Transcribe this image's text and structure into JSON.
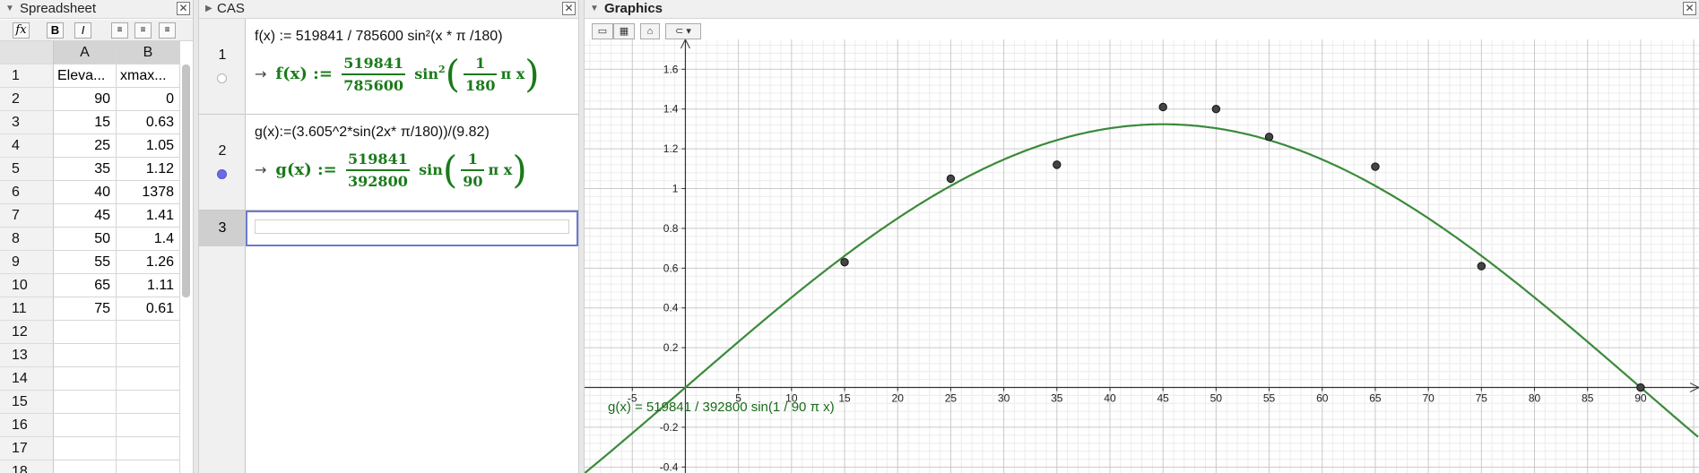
{
  "spreadsheet": {
    "title": "Spreadsheet",
    "toolbar": {
      "fx": "fx",
      "bold": "B",
      "italic": "I"
    },
    "columns": [
      "A",
      "B"
    ],
    "rows": [
      {
        "n": "1",
        "a": "Eleva...",
        "b": "xmax..."
      },
      {
        "n": "2",
        "a": "90",
        "b": "0"
      },
      {
        "n": "3",
        "a": "15",
        "b": "0.63"
      },
      {
        "n": "4",
        "a": "25",
        "b": "1.05"
      },
      {
        "n": "5",
        "a": "35",
        "b": "1.12"
      },
      {
        "n": "6",
        "a": "40",
        "b": "1378"
      },
      {
        "n": "7",
        "a": "45",
        "b": "1.41"
      },
      {
        "n": "8",
        "a": "50",
        "b": "1.4"
      },
      {
        "n": "9",
        "a": "55",
        "b": "1.26"
      },
      {
        "n": "10",
        "a": "65",
        "b": "1.11"
      },
      {
        "n": "11",
        "a": "75",
        "b": "0.61"
      },
      {
        "n": "12",
        "a": "",
        "b": ""
      },
      {
        "n": "13",
        "a": "",
        "b": ""
      },
      {
        "n": "14",
        "a": "",
        "b": ""
      },
      {
        "n": "15",
        "a": "",
        "b": ""
      },
      {
        "n": "16",
        "a": "",
        "b": ""
      },
      {
        "n": "17",
        "a": "",
        "b": ""
      },
      {
        "n": "18",
        "a": "",
        "b": ""
      }
    ]
  },
  "cas": {
    "title": "CAS",
    "rows": [
      {
        "n": "1",
        "input": "f(x) := 519841 / 785600 sin²(x * π /180)",
        "out_lhs": "f(x) :=",
        "out_num": "519841",
        "out_den": "785600",
        "out_func": "sin",
        "out_power": "2",
        "out_inner_num": "1",
        "out_inner_den": "180",
        "out_tail": "π x"
      },
      {
        "n": "2",
        "input": "g(x):=(3.605^2*sin(2x* π/180))/(9.82)",
        "out_lhs": "g(x) :=",
        "out_num": "519841",
        "out_den": "392800",
        "out_func": "sin",
        "out_power": "",
        "out_inner_num": "1",
        "out_inner_den": "90",
        "out_tail": "π x"
      }
    ],
    "new_row_number": "3",
    "arrow": "→"
  },
  "graphics": {
    "title": "Graphics",
    "function_label": "g(x) = 519841 / 392800 sin(1 / 90 π x)",
    "colors": {
      "curve": "#3a8a3a",
      "points": "#444444",
      "label": "#1a6b1a"
    }
  },
  "chart_data": {
    "type": "scatter",
    "x_ticks": [
      "-5",
      "5",
      "10",
      "15",
      "20",
      "25",
      "30",
      "35",
      "40",
      "45",
      "50",
      "55",
      "60",
      "65",
      "70",
      "75",
      "80",
      "85",
      "90"
    ],
    "y_ticks": [
      "-0.4",
      "-0.2",
      "0.2",
      "0.4",
      "0.6",
      "0.8",
      "1",
      "1.2",
      "1.4",
      "1.6"
    ],
    "points": [
      [
        15,
        0.63
      ],
      [
        25,
        1.05
      ],
      [
        35,
        1.12
      ],
      [
        45,
        1.41
      ],
      [
        50,
        1.4
      ],
      [
        55,
        1.26
      ],
      [
        65,
        1.11
      ],
      [
        75,
        0.61
      ],
      [
        90,
        0
      ]
    ],
    "curve": {
      "amplitude": 1.3234,
      "formula": "A*sin(pi*x/90)"
    },
    "xlim": [
      -9.5,
      95.5
    ],
    "ylim": [
      -0.43,
      1.75
    ],
    "grid": true
  }
}
